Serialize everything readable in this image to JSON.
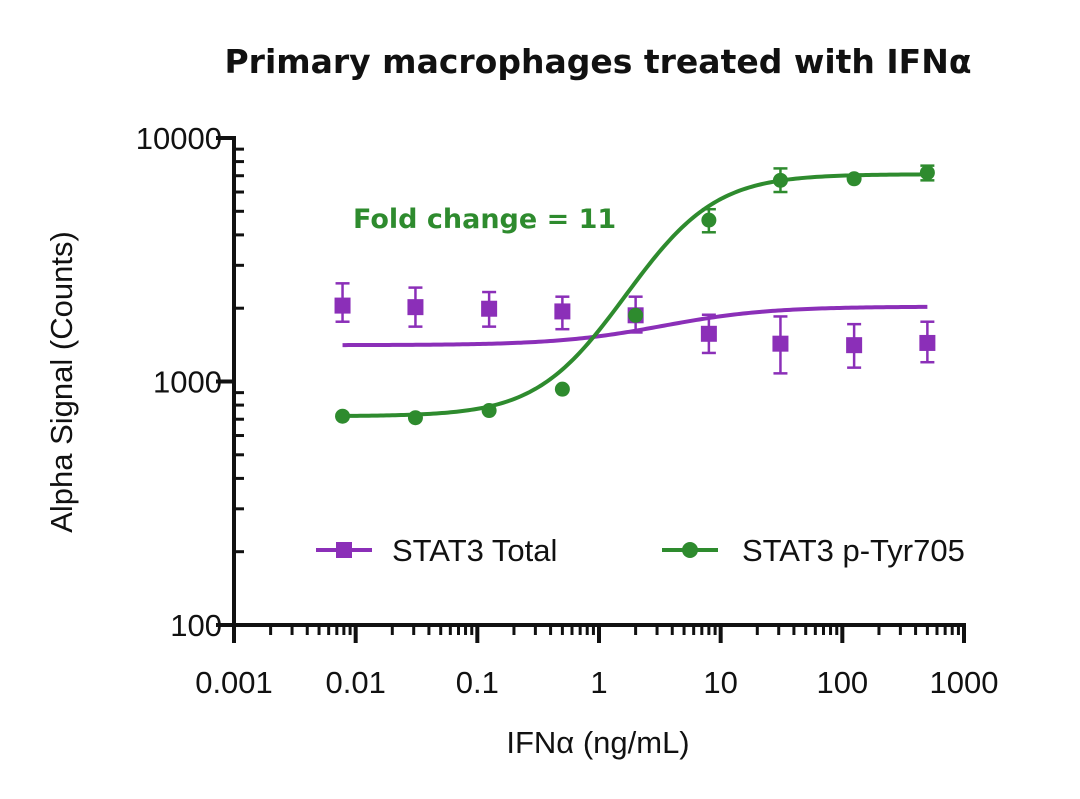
{
  "chart_data": {
    "type": "line",
    "title": "Primary macrophages treated with IFNα",
    "xlabel": "IFNα (ng/mL)",
    "ylabel": "Alpha Signal (Counts)",
    "x_scale": "log",
    "y_scale": "log",
    "xlim": [
      0.001,
      1000
    ],
    "ylim": [
      100,
      10000
    ],
    "x_ticks": [
      0.001,
      0.01,
      0.1,
      1,
      10,
      100,
      1000
    ],
    "x_tick_labels": [
      "0.001",
      "0.01",
      "0.1",
      "1",
      "10",
      "100",
      "1000"
    ],
    "y_ticks": [
      100,
      1000,
      10000
    ],
    "y_tick_labels": [
      "100",
      "1000",
      "10000"
    ],
    "grid": false,
    "legend_position": "bottom-center",
    "annotation": {
      "text": "Fold change =  11",
      "color": "#2e8b2e"
    },
    "series": [
      {
        "name": "STAT3 Total",
        "color": "#8b2fb8",
        "marker": "square",
        "x": [
          0.0078,
          0.031,
          0.125,
          0.5,
          2,
          8,
          31,
          125,
          500
        ],
        "y": [
          2050,
          2020,
          1990,
          1940,
          1870,
          1570,
          1430,
          1410,
          1440
        ],
        "err_low": [
          1760,
          1680,
          1680,
          1640,
          1590,
          1310,
          1080,
          1140,
          1200
        ],
        "err_high": [
          2530,
          2430,
          2330,
          2230,
          2230,
          1880,
          1850,
          1720,
          1760
        ],
        "fit": {
          "bottom": 1410,
          "top": 2030,
          "ec50": 4,
          "hill": 1
        }
      },
      {
        "name": "STAT3 p-Tyr705",
        "color": "#2e8b2e",
        "marker": "circle",
        "x": [
          0.0078,
          0.031,
          0.125,
          0.5,
          2,
          8,
          31,
          125,
          500
        ],
        "y": [
          720,
          710,
          760,
          930,
          1870,
          4600,
          6700,
          6800,
          7200
        ],
        "err_low": [
          720,
          710,
          760,
          930,
          1870,
          4100,
          6000,
          6800,
          6700
        ],
        "err_high": [
          720,
          710,
          760,
          930,
          1870,
          5100,
          7500,
          6800,
          7700
        ],
        "fit": {
          "bottom": 720,
          "top": 7100,
          "ec50": 4,
          "hill": 1.3
        }
      }
    ]
  }
}
